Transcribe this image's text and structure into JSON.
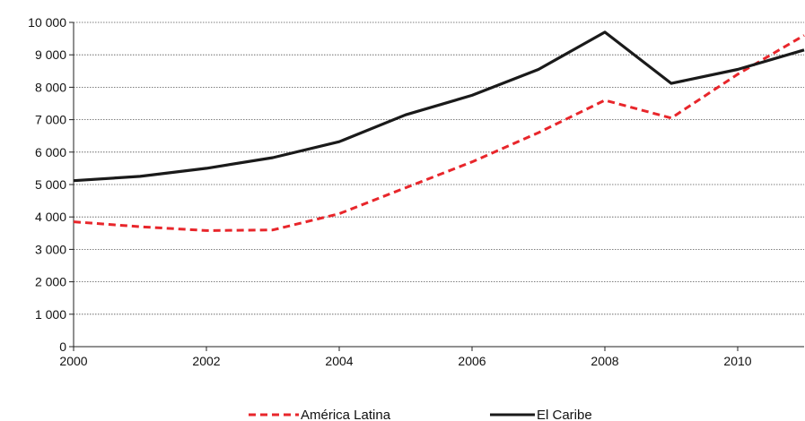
{
  "chart_data": {
    "type": "line",
    "title": "",
    "xlabel": "",
    "ylabel": "",
    "x": [
      2000,
      2001,
      2002,
      2003,
      2004,
      2005,
      2006,
      2007,
      2008,
      2009,
      2010,
      2011
    ],
    "xlim": [
      2000,
      2011
    ],
    "ylim": [
      0,
      10000
    ],
    "x_ticks": [
      2000,
      2002,
      2004,
      2006,
      2008,
      2010
    ],
    "x_tick_labels": [
      "2000",
      "2002",
      "2004",
      "2006",
      "2008",
      "2010"
    ],
    "y_ticks": [
      0,
      1000,
      2000,
      3000,
      4000,
      5000,
      6000,
      7000,
      8000,
      9000,
      10000
    ],
    "y_tick_labels": [
      "0",
      "1 000",
      "2 000",
      "3 000",
      "4 000",
      "5 000",
      "6 000",
      "7 000",
      "8 000",
      "9 000",
      "10 000"
    ],
    "grid": "horizontal dotted",
    "legend_position": "bottom",
    "series": [
      {
        "name": "América Latina",
        "color": "#e8262b",
        "style": "dashed",
        "values": [
          3850,
          3700,
          3580,
          3600,
          4100,
          4900,
          5700,
          6600,
          7600,
          7050,
          8400,
          9600
        ]
      },
      {
        "name": "El Caribe",
        "color": "#1a1a1a",
        "style": "solid",
        "values": [
          5120,
          5250,
          5500,
          5830,
          6320,
          7150,
          7750,
          8550,
          9700,
          8120,
          8550,
          9150
        ]
      }
    ]
  }
}
